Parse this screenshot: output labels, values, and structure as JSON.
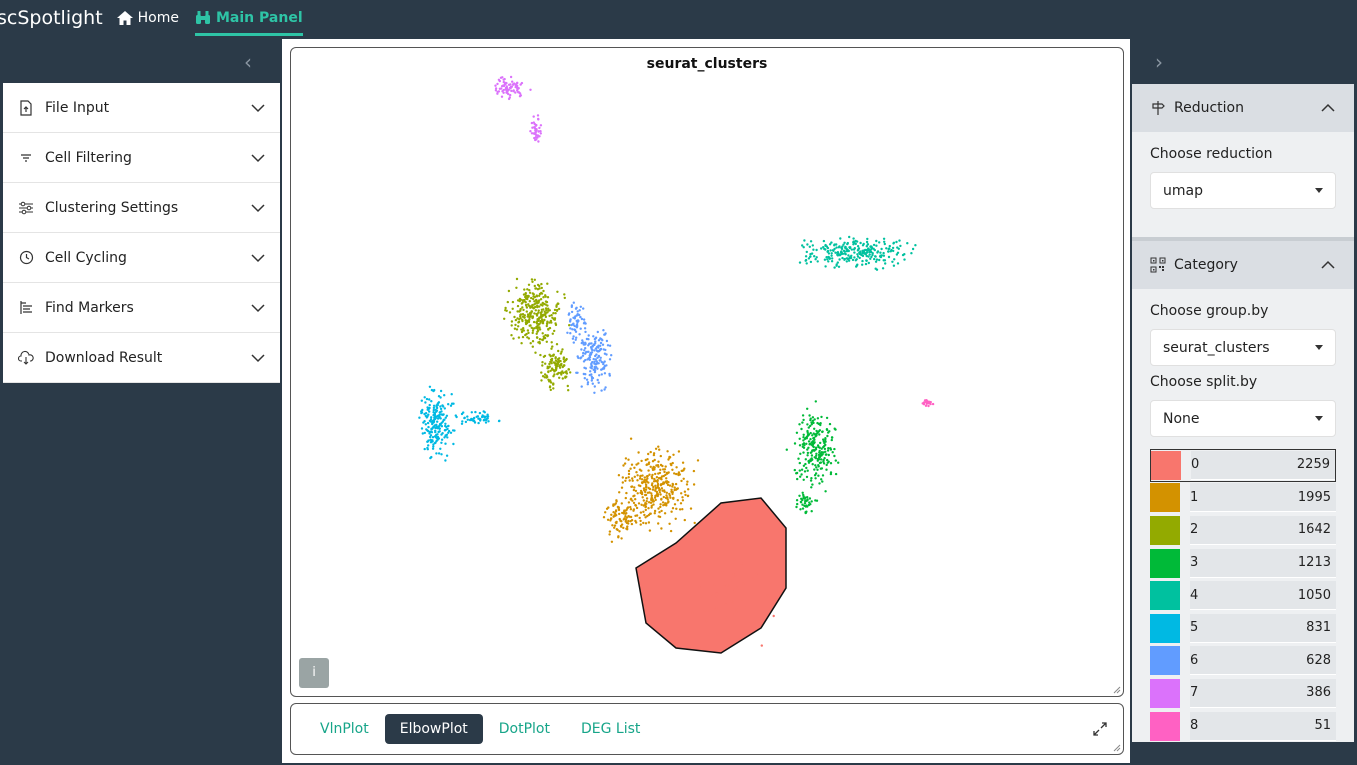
{
  "nav": {
    "brand": "scSpotlight",
    "home_label": "Home",
    "main_panel_label": "Main Panel"
  },
  "sidebar": {
    "items": [
      {
        "label": "File Input",
        "icon": "file-upload-icon"
      },
      {
        "label": "Cell Filtering",
        "icon": "filter-icon"
      },
      {
        "label": "Clustering Settings",
        "icon": "sliders-icon"
      },
      {
        "label": "Cell Cycling",
        "icon": "clock-icon"
      },
      {
        "label": "Find Markers",
        "icon": "bars-icon"
      },
      {
        "label": "Download Result",
        "icon": "download-icon"
      }
    ]
  },
  "plot": {
    "title": "seurat_clusters",
    "info_label": "i",
    "tabs": [
      {
        "label": "VlnPlot",
        "active": false
      },
      {
        "label": "ElbowPlot",
        "active": true
      },
      {
        "label": "DotPlot",
        "active": false
      },
      {
        "label": "DEG List",
        "active": false
      }
    ]
  },
  "right": {
    "reduction": {
      "header": "Reduction",
      "label": "Choose reduction",
      "value": "umap"
    },
    "category": {
      "header": "Category",
      "group_label": "Choose group.by",
      "group_value": "seurat_clusters",
      "split_label": "Choose split.by",
      "split_value": "None"
    },
    "clusters": [
      {
        "id": "0",
        "count": "2259",
        "color": "#f8766d"
      },
      {
        "id": "1",
        "count": "1995",
        "color": "#d39200"
      },
      {
        "id": "2",
        "count": "1642",
        "color": "#93aa00"
      },
      {
        "id": "3",
        "count": "1213",
        "color": "#00ba38"
      },
      {
        "id": "4",
        "count": "1050",
        "color": "#00c19f"
      },
      {
        "id": "5",
        "count": "831",
        "color": "#00b9e3"
      },
      {
        "id": "6",
        "count": "628",
        "color": "#619cff"
      },
      {
        "id": "7",
        "count": "386",
        "color": "#db72fb"
      },
      {
        "id": "8",
        "count": "51",
        "color": "#ff61c3"
      }
    ],
    "selected_cluster": "0"
  },
  "colors": {
    "accent": "#2ec4a6",
    "background": "#2b3a48"
  }
}
